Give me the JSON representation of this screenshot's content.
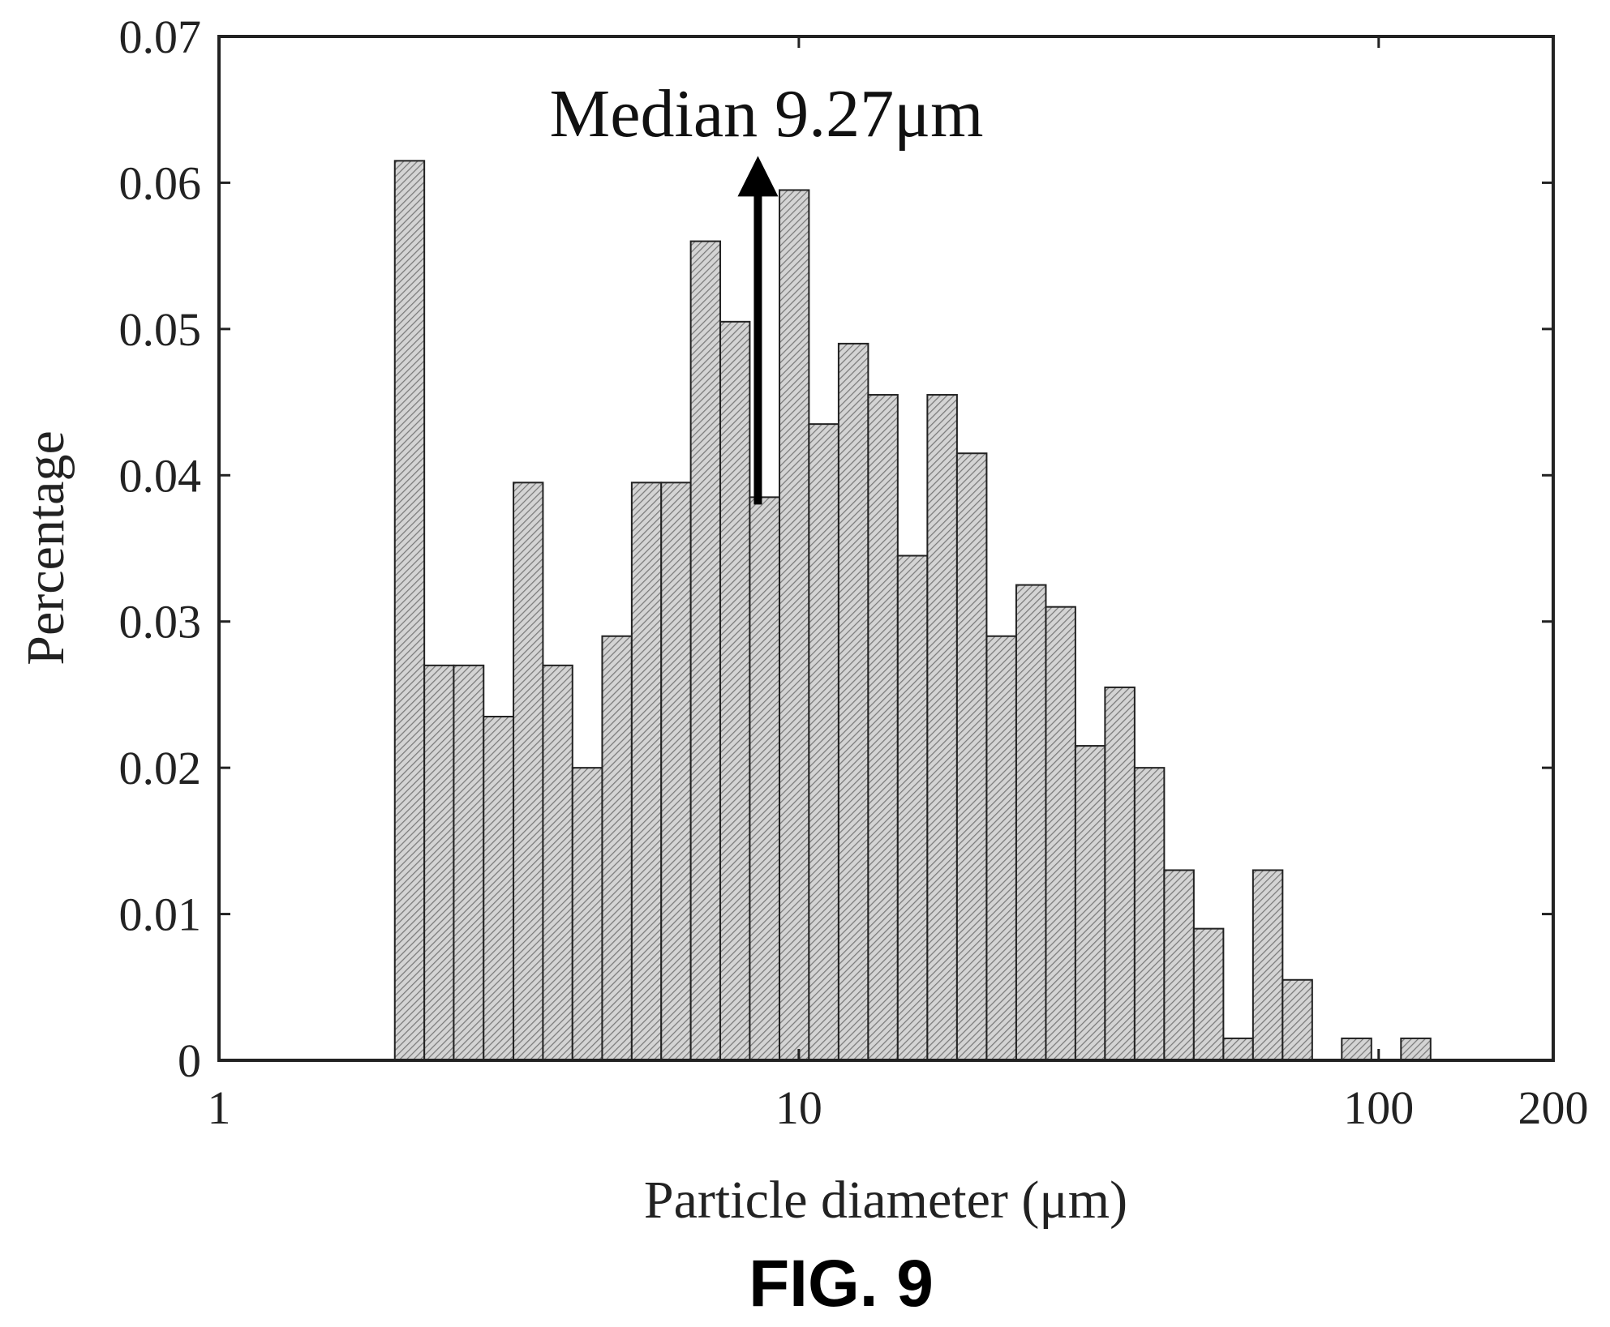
{
  "chart_data": {
    "type": "bar",
    "xscale": "log",
    "xlim": [
      1,
      200
    ],
    "ylim": [
      0,
      0.07
    ],
    "xlabel": "Particle diameter (μm)",
    "ylabel": "Percentage",
    "xticks": [
      {
        "value": 1,
        "label": "1"
      },
      {
        "value": 10,
        "label": "10"
      },
      {
        "value": 100,
        "label": "100"
      },
      {
        "value": 200,
        "label": "200"
      }
    ],
    "yticks": [
      {
        "value": 0,
        "label": "0"
      },
      {
        "value": 0.01,
        "label": "0.01"
      },
      {
        "value": 0.02,
        "label": "0.02"
      },
      {
        "value": 0.03,
        "label": "0.03"
      },
      {
        "value": 0.04,
        "label": "0.04"
      },
      {
        "value": 0.05,
        "label": "0.05"
      },
      {
        "value": 0.06,
        "label": "0.06"
      },
      {
        "value": 0.07,
        "label": "0.07"
      }
    ],
    "grid": false,
    "bin_edges": [
      2.01,
      2.26,
      2.54,
      2.86,
      3.22,
      3.62,
      4.07,
      4.58,
      5.15,
      5.79,
      6.51,
      7.32,
      8.23,
      9.26,
      10.41,
      11.71,
      13.17,
      14.81,
      16.66,
      18.74,
      21.08,
      23.71,
      26.67,
      29.99,
      33.73,
      37.94,
      42.67,
      47.99,
      53.98,
      60.71,
      68.28,
      76.8,
      86.37,
      97.14,
      109.26
    ],
    "values": [
      0.0615,
      0.027,
      0.027,
      0.0235,
      0.0395,
      0.027,
      0.02,
      0.029,
      0.0395,
      0.0395,
      0.056,
      0.0505,
      0.0385,
      0.0595,
      0.0435,
      0.049,
      0.0455,
      0.0345,
      0.0455,
      0.0415,
      0.029,
      0.0325,
      0.031,
      0.0215,
      0.0255,
      0.02,
      0.013,
      0.009,
      0.0015,
      0.013,
      0.0055,
      0,
      0.0015,
      0,
      0.0015
    ],
    "annotation": {
      "text": "Median 9.27μm",
      "x": 8.5,
      "y_start": 0.038,
      "y_end": 0.061
    }
  },
  "caption": "FIG. 9"
}
